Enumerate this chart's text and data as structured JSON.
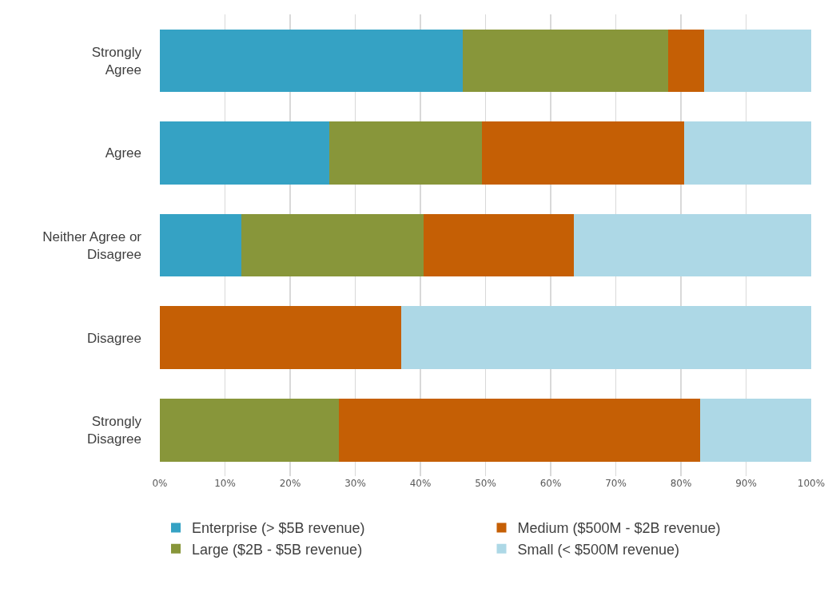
{
  "chart_data": {
    "type": "bar",
    "orientation": "horizontal",
    "stacked": true,
    "categories": [
      "Strongly Agree",
      "Agree",
      "Neither Agree or Disagree",
      "Disagree",
      "Strongly Disagree"
    ],
    "series": [
      {
        "name": "Enterprise (> $5B revenue)",
        "color": "#35a2c4",
        "values": [
          46.5,
          26,
          12.5,
          null,
          null
        ]
      },
      {
        "name": "Large ($2B - $5B revenue)",
        "color": "#88963a",
        "values": [
          31.5,
          23.5,
          28,
          null,
          27.5
        ]
      },
      {
        "name": "Medium ($500M - $2B revenue)",
        "color": "#c55f05",
        "values": [
          5.5,
          31,
          23,
          37,
          55.5
        ]
      },
      {
        "name": "Small (< $500M revenue)",
        "color": "#add8e6",
        "values": [
          16.5,
          19.5,
          36.5,
          63,
          17
        ]
      }
    ],
    "xlim": [
      0,
      100
    ],
    "xticks": [
      {
        "value": 0,
        "label": "0%"
      },
      {
        "value": 10,
        "label": "10%"
      },
      {
        "value": 20,
        "label": "20%"
      },
      {
        "value": 30,
        "label": "30%"
      },
      {
        "value": 40,
        "label": "40%"
      },
      {
        "value": 50,
        "label": "50%"
      },
      {
        "value": 60,
        "label": "60%"
      },
      {
        "value": 70,
        "label": "70%"
      },
      {
        "value": 80,
        "label": "80%"
      },
      {
        "value": 90,
        "label": "90%"
      },
      {
        "value": 100,
        "label": "100%"
      }
    ],
    "grid": "x",
    "legend": "bottom"
  }
}
